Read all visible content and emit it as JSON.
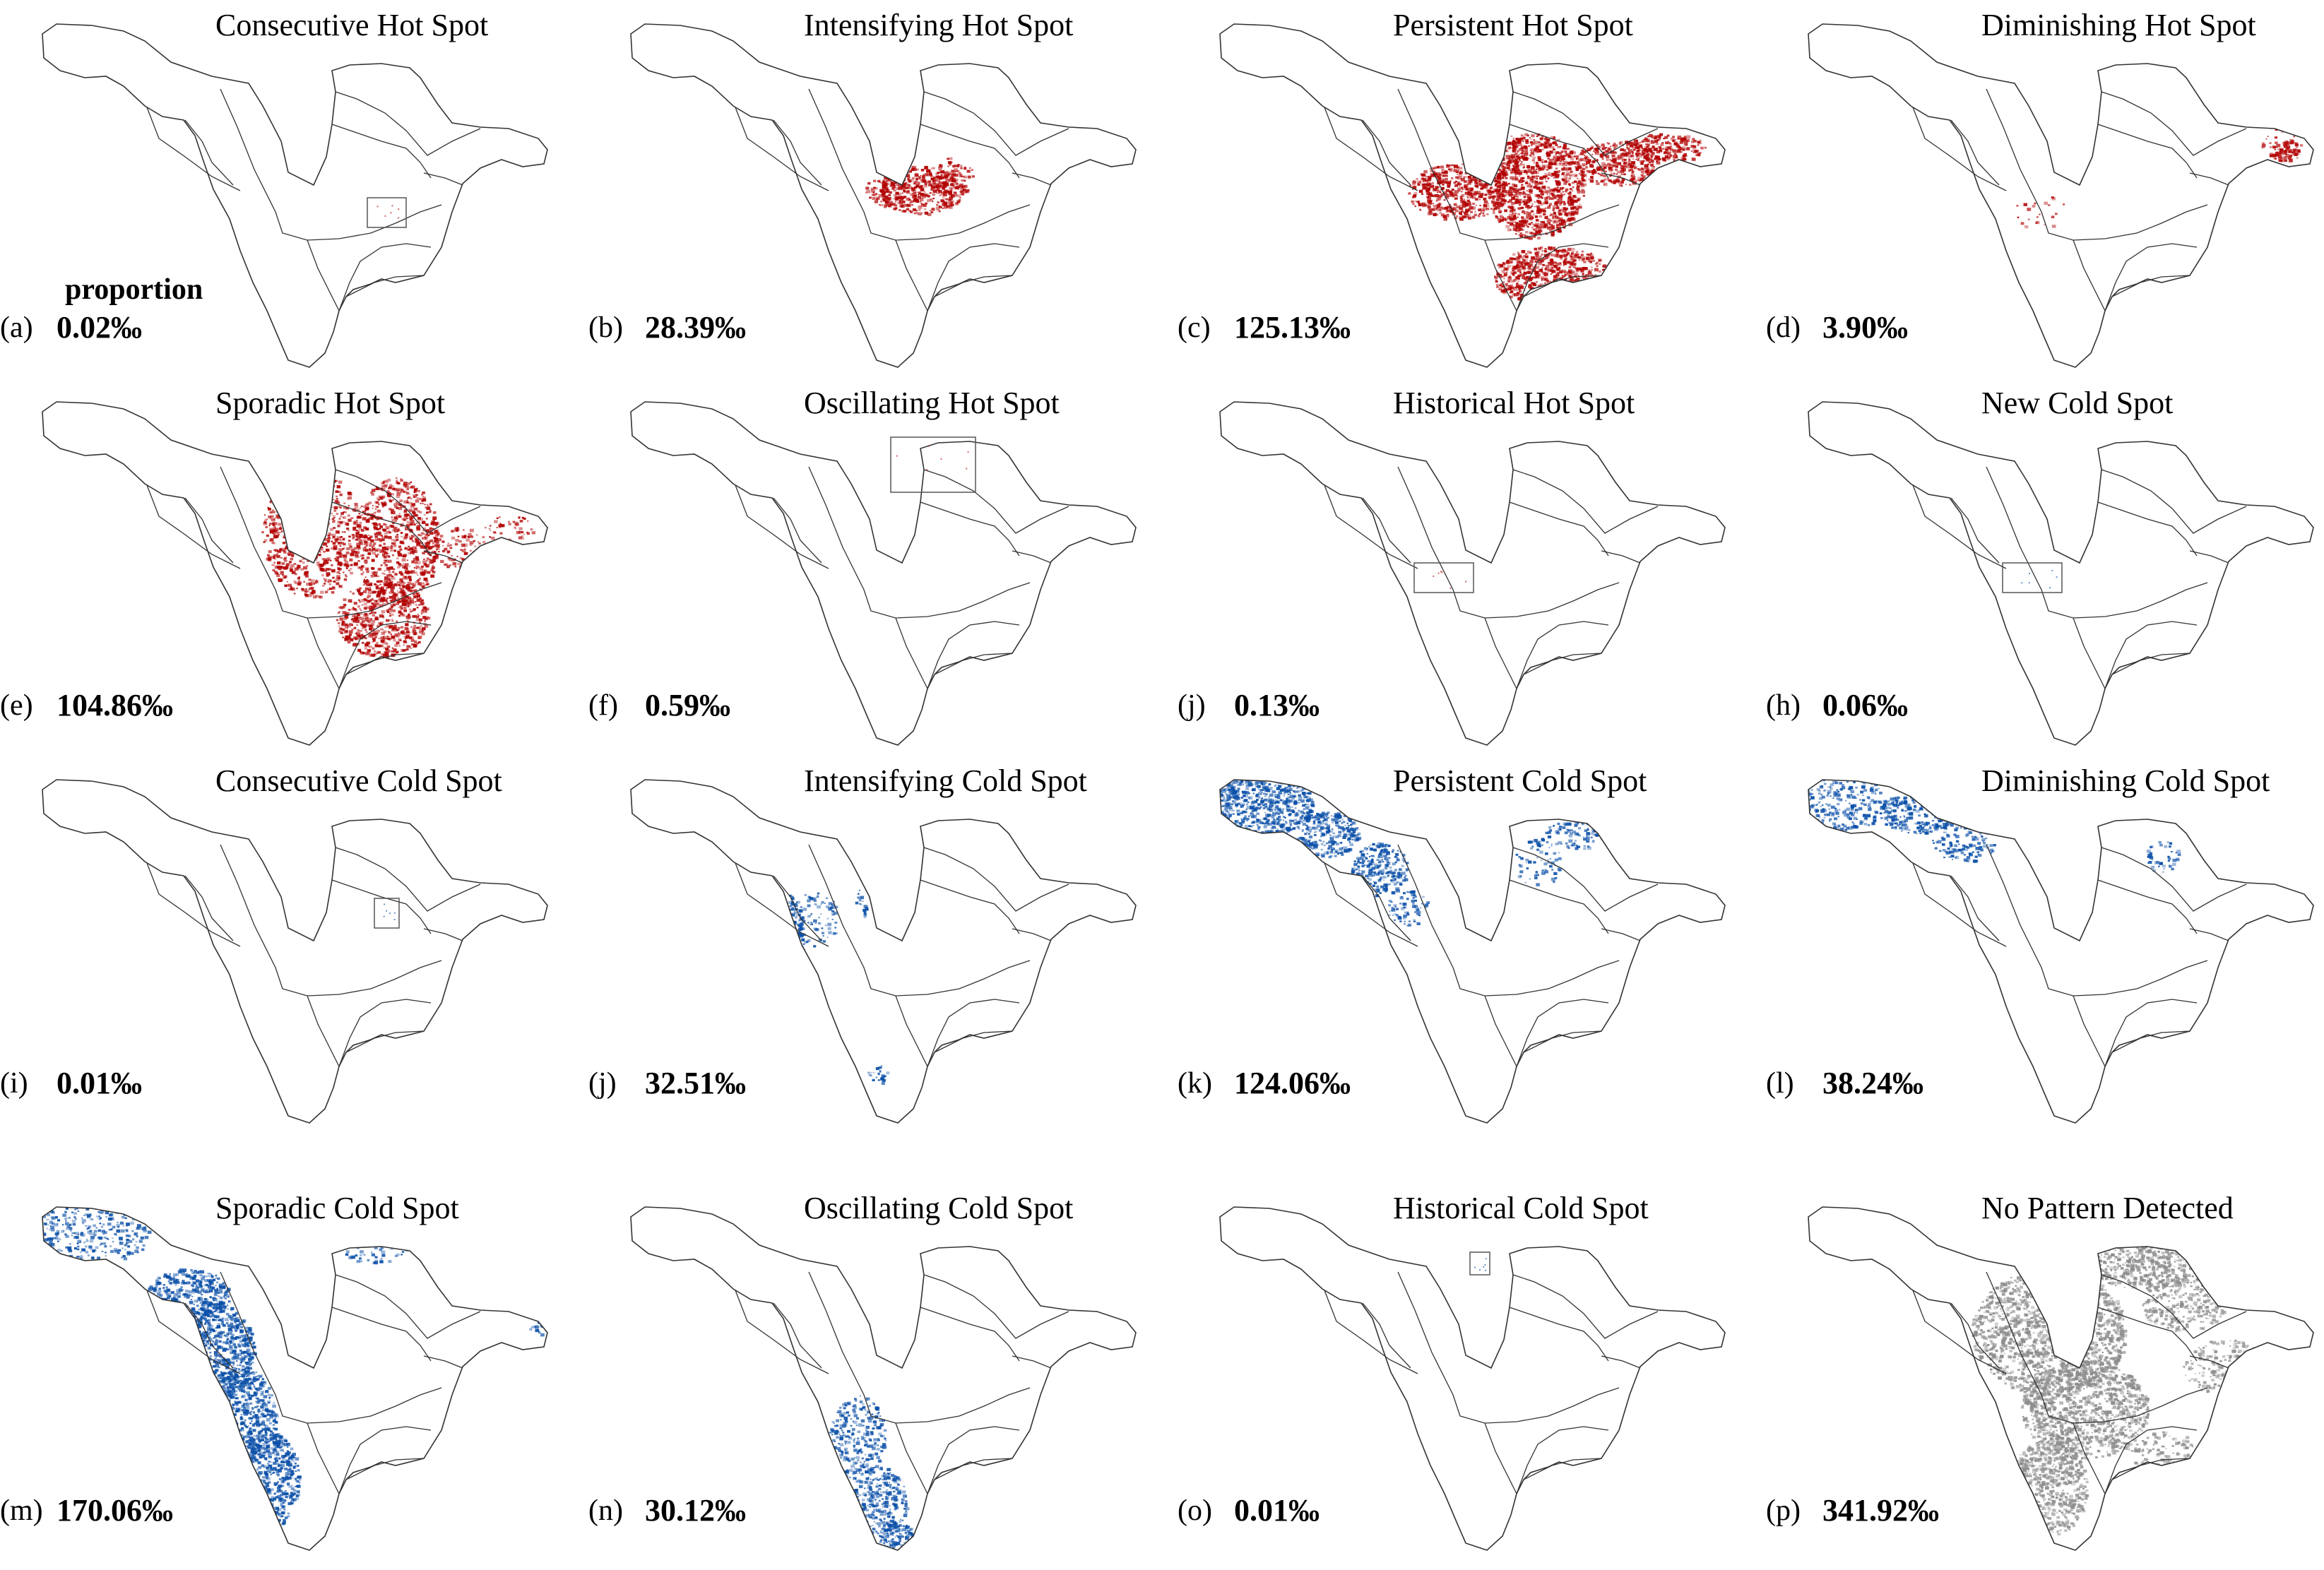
{
  "figure": {
    "proportion_label": "proportion",
    "colors": {
      "hot": "#b20000",
      "cold": "#0a4fa8",
      "none": "#8c8c8c",
      "outline": "#333333"
    },
    "panels": [
      {
        "label": "(a)",
        "title": "Consecutive Hot Spot",
        "value": "0.02‰",
        "kind": "hot",
        "pattern": "box1"
      },
      {
        "label": "(b)",
        "title": "Intensifying Hot Spot",
        "value": "28.39‰",
        "kind": "hot",
        "pattern": "hot_b"
      },
      {
        "label": "(c)",
        "title": "Persistent Hot Spot",
        "value": "125.13‰",
        "kind": "hot",
        "pattern": "hot_c"
      },
      {
        "label": "(d)",
        "title": "Diminishing Hot Spot",
        "value": "3.90‰",
        "kind": "hot",
        "pattern": "hot_d"
      },
      {
        "label": "(e)",
        "title": "Sporadic Hot Spot",
        "value": "104.86‰",
        "kind": "hot",
        "pattern": "hot_e"
      },
      {
        "label": "(f)",
        "title": "Oscillating Hot Spot",
        "value": "0.59‰",
        "kind": "hot",
        "pattern": "box2"
      },
      {
        "label": "(j)",
        "title": "Historical Hot Spot",
        "value": "0.13‰",
        "kind": "hot",
        "pattern": "box3"
      },
      {
        "label": "(h)",
        "title": "New Cold Spot",
        "value": "0.06‰",
        "kind": "cold",
        "pattern": "box3"
      },
      {
        "label": "(i)",
        "title": "Consecutive Cold Spot",
        "value": "0.01‰",
        "kind": "cold",
        "pattern": "box4"
      },
      {
        "label": "(j)",
        "title": "Intensifying Cold Spot",
        "value": "32.51‰",
        "kind": "cold",
        "pattern": "cold_j"
      },
      {
        "label": "(k)",
        "title": "Persistent Cold Spot",
        "value": "124.06‰",
        "kind": "cold",
        "pattern": "cold_k"
      },
      {
        "label": "(l)",
        "title": "Diminishing Cold Spot",
        "value": "38.24‰",
        "kind": "cold",
        "pattern": "cold_l"
      },
      {
        "label": "(m)",
        "title": "Sporadic Cold Spot",
        "value": "170.06‰",
        "kind": "cold",
        "pattern": "cold_m"
      },
      {
        "label": "(n)",
        "title": "Oscillating Cold Spot",
        "value": "30.12‰",
        "kind": "cold",
        "pattern": "cold_n"
      },
      {
        "label": "(o)",
        "title": "Historical Cold Spot",
        "value": "0.01‰",
        "kind": "cold",
        "pattern": "box5"
      },
      {
        "label": "(p)",
        "title": "No Pattern Detected",
        "value": "341.92‰",
        "kind": "none",
        "pattern": "none_p"
      }
    ]
  }
}
